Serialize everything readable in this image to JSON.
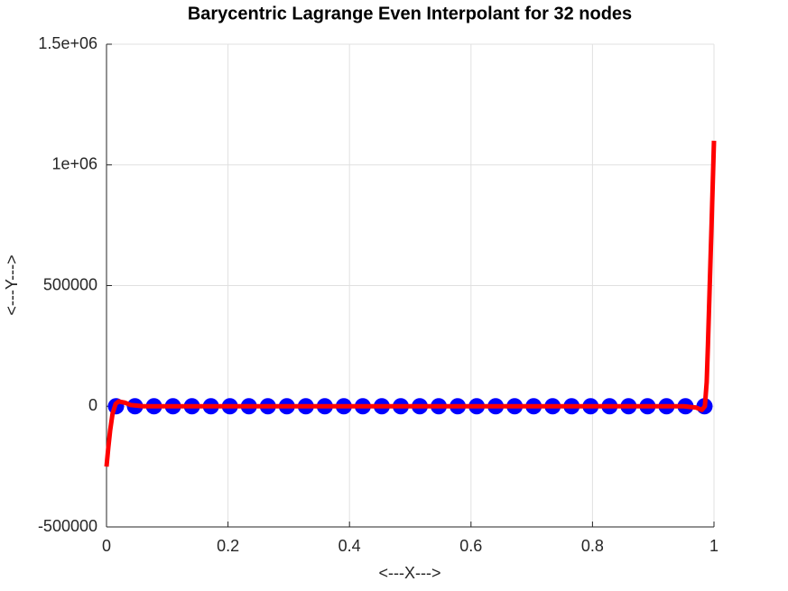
{
  "chart_data": {
    "type": "line",
    "title": "Barycentric Lagrange Even Interpolant for 32 nodes",
    "xlabel": "<---X--->",
    "ylabel": "<---Y--->",
    "xlim": [
      0,
      1
    ],
    "xticks": [
      0,
      0.2,
      0.4,
      0.6,
      0.8,
      1
    ],
    "ylim": [
      -500000,
      1500000
    ],
    "yticks": [
      -500000,
      0,
      500000,
      {
        "value": 1000000,
        "label": "1e+06"
      },
      {
        "value": 1500000,
        "label": "1.5e+06"
      }
    ],
    "grid": true,
    "series": [
      {
        "style": "markers",
        "color": "#0000ff",
        "x": [
          0.015625,
          0.046875,
          0.078125,
          0.109375,
          0.140625,
          0.171875,
          0.203125,
          0.234375,
          0.265625,
          0.296875,
          0.328125,
          0.359375,
          0.390625,
          0.421875,
          0.453125,
          0.484375,
          0.515625,
          0.546875,
          0.578125,
          0.609375,
          0.640625,
          0.671875,
          0.703125,
          0.734375,
          0.765625,
          0.796875,
          0.828125,
          0.859375,
          0.890625,
          0.921875,
          0.953125,
          0.984375
        ],
        "values": [
          0,
          0,
          0,
          0,
          0,
          0,
          0,
          0,
          0,
          0,
          0,
          0,
          0,
          0,
          0,
          0,
          0,
          0,
          0,
          0,
          0,
          0,
          0,
          0,
          0,
          0,
          0,
          0,
          0,
          0,
          0,
          0
        ]
      },
      {
        "style": "line",
        "color": "#ff0000",
        "x": [
          0,
          0.003,
          0.006,
          0.01,
          0.015,
          0.02,
          0.03,
          0.04,
          0.06,
          0.1,
          0.2,
          0.3,
          0.4,
          0.5,
          0.6,
          0.7,
          0.8,
          0.9,
          0.95,
          0.97,
          0.98,
          0.985,
          0.988,
          0.99,
          0.993,
          0.996,
          1
        ],
        "values": [
          -250000,
          -170000,
          -100000,
          -30000,
          10000,
          20000,
          15000,
          5000,
          0,
          0,
          0,
          0,
          0,
          0,
          0,
          0,
          0,
          0,
          0,
          -5000,
          -15000,
          0,
          100000,
          250000,
          500000,
          750000,
          1100000
        ]
      }
    ]
  }
}
